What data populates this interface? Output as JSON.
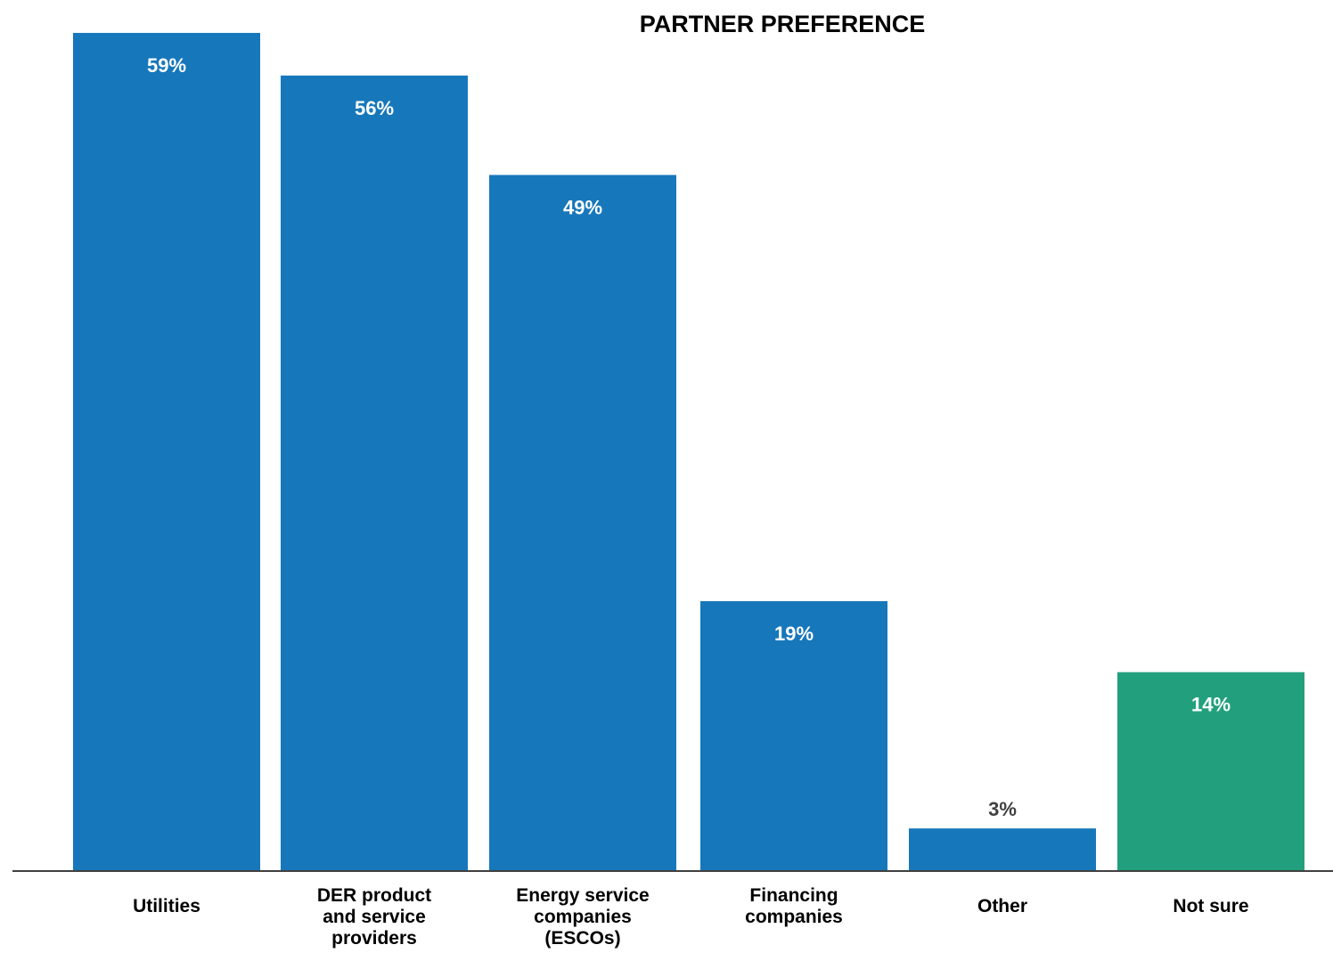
{
  "chart_data": {
    "type": "bar",
    "title": "PARTNER PREFERENCE",
    "categories": [
      [
        "Utilities"
      ],
      [
        "DER product",
        "and service",
        "providers"
      ],
      [
        "Energy service",
        "companies",
        "(ESCOs)"
      ],
      [
        "Financing",
        "companies"
      ],
      [
        "Other"
      ],
      [
        "Not sure"
      ]
    ],
    "values": [
      59,
      56,
      49,
      19,
      3,
      14
    ],
    "value_labels": [
      "59%",
      "56%",
      "49%",
      "19%",
      "3%",
      "14%"
    ],
    "bar_colors": [
      "#1777BB",
      "#1777BB",
      "#1777BB",
      "#1777BB",
      "#1777BB",
      "#22A07E"
    ],
    "label_colors": [
      "#FFFFFF",
      "#FFFFFF",
      "#FFFFFF",
      "#FFFFFF",
      "#404040",
      "#FFFFFF"
    ],
    "ylim": [
      0,
      60
    ],
    "grid": false,
    "legend": "none"
  }
}
